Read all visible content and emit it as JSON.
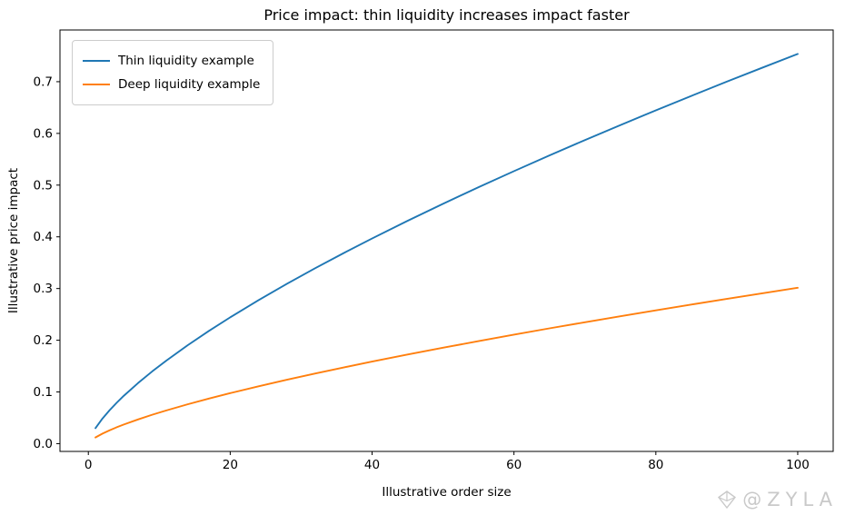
{
  "chart_data": {
    "type": "line",
    "title": "Price impact: thin liquidity increases impact faster",
    "xlabel": "Illustrative order size",
    "ylabel": "Illustrative price impact",
    "xlim": [
      -4,
      105
    ],
    "ylim": [
      -0.015,
      0.8
    ],
    "xticks": [
      0,
      20,
      40,
      60,
      80,
      100
    ],
    "xtick_labels": [
      "0",
      "20",
      "40",
      "60",
      "80",
      "100"
    ],
    "yticks": [
      0.0,
      0.1,
      0.2,
      0.3,
      0.4,
      0.5,
      0.6,
      0.7
    ],
    "ytick_labels": [
      "0.0",
      "0.1",
      "0.2",
      "0.3",
      "0.4",
      "0.5",
      "0.6",
      "0.7"
    ],
    "grid": false,
    "legend_position": "upper left",
    "x": [
      1,
      2,
      3,
      4,
      5,
      7,
      9,
      11,
      14,
      17,
      20,
      24,
      28,
      32,
      36,
      40,
      45,
      50,
      55,
      60,
      65,
      70,
      75,
      80,
      85,
      90,
      95,
      100
    ],
    "series": [
      {
        "name": "Thin liquidity example",
        "color": "#1f77b4",
        "values": [
          0.03,
          0.0487,
          0.0647,
          0.0792,
          0.0926,
          0.1171,
          0.1397,
          0.1607,
          0.1903,
          0.218,
          0.2443,
          0.2775,
          0.3091,
          0.3394,
          0.3686,
          0.3968,
          0.4309,
          0.4639,
          0.4959,
          0.527,
          0.5574,
          0.5871,
          0.6161,
          0.6446,
          0.6725,
          0.7,
          0.727,
          0.7536
        ]
      },
      {
        "name": "Deep liquidity example",
        "color": "#ff7f0e",
        "values": [
          0.012,
          0.0195,
          0.0259,
          0.0317,
          0.037,
          0.0468,
          0.0559,
          0.0643,
          0.0761,
          0.0872,
          0.0977,
          0.111,
          0.1236,
          0.1358,
          0.1474,
          0.1587,
          0.1724,
          0.1855,
          0.1983,
          0.2108,
          0.223,
          0.2348,
          0.2464,
          0.2578,
          0.269,
          0.28,
          0.2908,
          0.3014
        ]
      }
    ]
  },
  "watermark": {
    "text": "@ZYLA",
    "icon": "zyla-diamond-logo"
  }
}
